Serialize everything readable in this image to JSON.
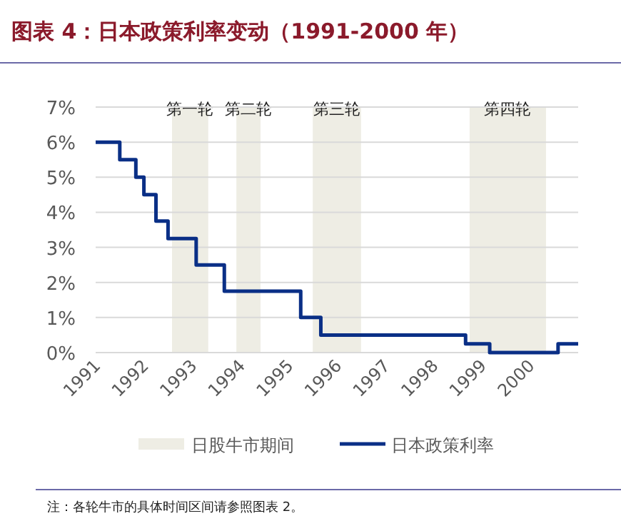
{
  "chart_data": {
    "type": "step",
    "title": "图表 4：日本政策利率变动（1991-2000 年）",
    "x": [
      "1991-01",
      "1991-07",
      "1991-11",
      "1992-01",
      "1992-04",
      "1992-07",
      "1993-02",
      "1993-09",
      "1995-04",
      "1995-09",
      "1998-09",
      "1999-03",
      "2000-08",
      "2001-01"
    ],
    "series": [
      {
        "name": "日本政策利率",
        "color": "#0a2f86",
        "values": [
          6,
          5.5,
          5,
          4.5,
          3.75,
          3.25,
          2.5,
          1.75,
          1,
          0.5,
          0.25,
          0,
          0.25,
          0.25
        ]
      }
    ],
    "xlim": [
      "1991-01",
      "2001-01"
    ],
    "xticks": [
      "1991",
      "1992",
      "1993",
      "1994",
      "1995",
      "1996",
      "1997",
      "1998",
      "1999",
      "2000"
    ],
    "ylim": [
      0,
      7
    ],
    "yticks": [
      {
        "value": 0,
        "label": "0%"
      },
      {
        "value": 1,
        "label": "1%"
      },
      {
        "value": 2,
        "label": "2%"
      },
      {
        "value": 3,
        "label": "3%"
      },
      {
        "value": 4,
        "label": "4%"
      },
      {
        "value": 5,
        "label": "5%"
      },
      {
        "value": 6,
        "label": "6%"
      },
      {
        "value": 7,
        "label": "7%"
      }
    ],
    "bands": [
      {
        "axis": "x",
        "from": "1992-08",
        "to": "1993-05",
        "label": "第一轮",
        "color": "#eeede4"
      },
      {
        "axis": "x",
        "from": "1993-12",
        "to": "1994-06",
        "label": "第二轮",
        "color": "#eeede4"
      },
      {
        "axis": "x",
        "from": "1995-07",
        "to": "1996-07",
        "label": "第三轮",
        "color": "#eeede4"
      },
      {
        "axis": "x",
        "from": "1998-10",
        "to": "2000-05",
        "label": "第四轮",
        "color": "#eeede4"
      }
    ],
    "annotations": [
      "日股牛市期间",
      "注：各轮牛市的具体时间区间请参照图表 2。"
    ],
    "grid": "y",
    "legend": "bottom",
    "line_style": "solid",
    "marker": "none"
  }
}
